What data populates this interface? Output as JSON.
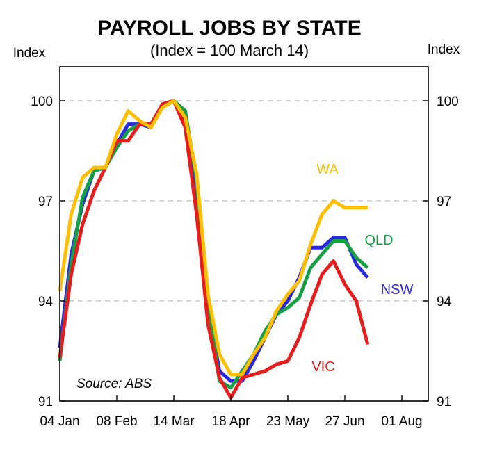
{
  "chart_data": {
    "type": "line",
    "title": "PAYROLL JOBS BY STATE",
    "subtitle": "(Index = 100 March 14)",
    "ylabel_left": "Index",
    "ylabel_right": "Index",
    "source": "Source: ABS",
    "ylim": [
      91,
      101
    ],
    "yticks": [
      91,
      94,
      97,
      100
    ],
    "ytick_labels": [
      "91",
      "94",
      "97",
      "100"
    ],
    "xticks": [
      "04 Jan",
      "08 Feb",
      "14 Mar",
      "18 Apr",
      "23 May",
      "27 Jun",
      "01 Aug"
    ],
    "grid": "horizontal-dashed",
    "series": [
      {
        "name": "NSW",
        "color": "#2929e0",
        "x": [
          0,
          2,
          4,
          6,
          8,
          10,
          12,
          14,
          16,
          18,
          20,
          22,
          24,
          26,
          28,
          30,
          32,
          34,
          36,
          38,
          40,
          42,
          44,
          46,
          48,
          50,
          52,
          54,
          56
        ],
        "values": [
          92.6,
          95.4,
          96.9,
          97.9,
          98.0,
          98.7,
          99.3,
          99.3,
          99.2,
          99.9,
          100.0,
          99.4,
          97.0,
          93.8,
          91.9,
          91.6,
          91.6,
          92.2,
          92.9,
          93.6,
          94.0,
          94.7,
          95.6,
          95.6,
          95.9,
          95.9,
          95.1,
          94.7,
          null
        ]
      },
      {
        "name": "QLD",
        "color": "#15a045",
        "x": [
          0,
          2,
          4,
          6,
          8,
          10,
          12,
          14,
          16,
          18,
          20,
          22,
          24,
          26,
          28,
          30,
          32,
          34,
          36,
          38,
          40,
          42,
          44,
          46,
          48,
          50,
          52,
          54
        ],
        "values": [
          92.2,
          95.1,
          97.1,
          97.9,
          98.0,
          98.6,
          99.1,
          99.3,
          99.3,
          99.8,
          100.0,
          99.7,
          97.6,
          93.9,
          91.6,
          91.4,
          91.9,
          92.4,
          93.1,
          93.6,
          93.8,
          94.1,
          95.0,
          95.4,
          95.8,
          95.8,
          95.3,
          95.0
        ]
      },
      {
        "name": "VIC",
        "color": "#e81c1c",
        "x": [
          0,
          2,
          4,
          6,
          8,
          10,
          12,
          14,
          16,
          18,
          20,
          22,
          24,
          26,
          28,
          30,
          32,
          34,
          36,
          38,
          40,
          42,
          44,
          46,
          48,
          50,
          52,
          54
        ],
        "values": [
          92.3,
          94.8,
          96.3,
          97.3,
          98.0,
          98.8,
          98.8,
          99.3,
          99.3,
          99.9,
          100.0,
          99.2,
          96.6,
          93.3,
          91.7,
          91.1,
          91.7,
          91.8,
          91.9,
          92.1,
          92.2,
          92.9,
          93.9,
          94.8,
          95.2,
          94.5,
          94.0,
          92.7
        ]
      },
      {
        "name": "WA",
        "color": "#ffbf00",
        "x": [
          0,
          2,
          4,
          6,
          8,
          10,
          12,
          14,
          16,
          18,
          20,
          22,
          24,
          26,
          28,
          30,
          32,
          34,
          36,
          38,
          40,
          42,
          44,
          46,
          48,
          50,
          52,
          54
        ],
        "values": [
          94.3,
          96.6,
          97.7,
          98.0,
          98.0,
          99.0,
          99.7,
          99.4,
          99.2,
          99.8,
          100.0,
          99.5,
          97.8,
          94.2,
          92.4,
          91.8,
          91.8,
          92.4,
          92.9,
          93.7,
          94.2,
          94.6,
          95.7,
          96.6,
          97.0,
          96.8,
          96.8,
          96.8
        ]
      }
    ]
  }
}
